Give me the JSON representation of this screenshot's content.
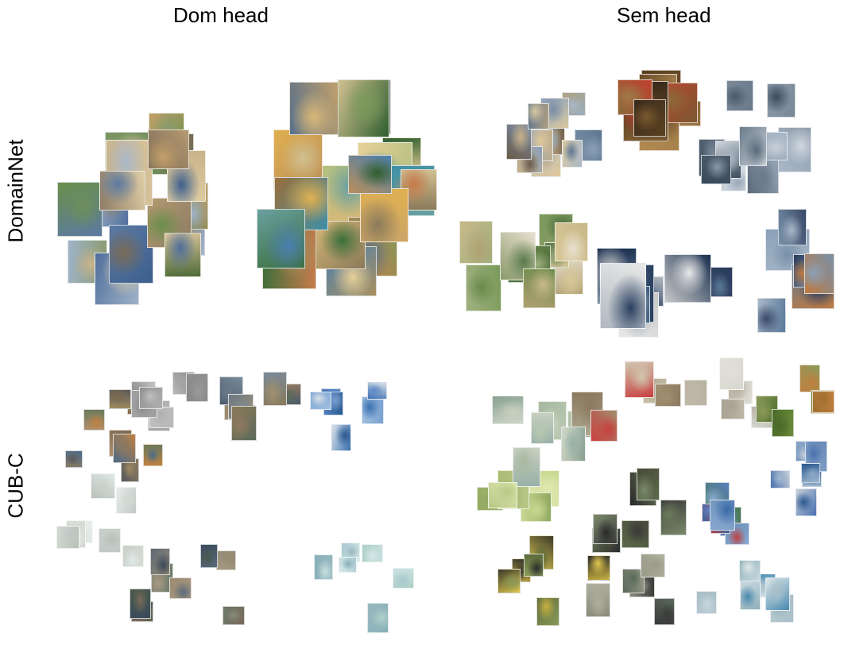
{
  "figure": {
    "column_titles": [
      "Dom head",
      "Sem head"
    ],
    "row_titles": [
      "DomainNet",
      "CUB-C"
    ]
  },
  "panels": [
    {
      "name": "domainnet-dom-head",
      "clusters": [
        {
          "theme": "mixed-photo",
          "colors": [
            "#8a9b6e",
            "#5b7aa3",
            "#c9b28a",
            "#6e8f5a",
            "#3d5f8c",
            "#d7c39a",
            "#7a6a55",
            "#a9b8c9",
            "#4f6b3a",
            "#b59a72",
            "#506e9c",
            "#c4a06a",
            "#8d7b64",
            "#9fb3c8",
            "#6b8f4a",
            "#e0cfa6"
          ]
        },
        {
          "theme": "painting",
          "colors": [
            "#c9a46a",
            "#3e8fa8",
            "#d8b878",
            "#e0b050",
            "#6aa0a0",
            "#8a7a5a",
            "#b98e5a",
            "#3a6e3a",
            "#d0c090",
            "#4a7fb0",
            "#c87a4a",
            "#2f5e2f",
            "#a89060",
            "#7a9a5a",
            "#e8d098",
            "#58708a",
            "#9a6e3a",
            "#b0c080"
          ]
        }
      ]
    },
    {
      "name": "domainnet-sem-head",
      "clusters": [
        {
          "theme": "eiffel",
          "colors": [
            "#7a8fa8",
            "#a9b8c9",
            "#c8b088",
            "#5e7690",
            "#e0c89a",
            "#8aa0b8",
            "#b0a080",
            "#6a5a48",
            "#d8c8a0",
            "#9aaec0"
          ]
        },
        {
          "theme": "mona-lisa",
          "colors": [
            "#6a4a2a",
            "#8a6a3a",
            "#3a2a1a",
            "#b08a50",
            "#c04030",
            "#5a4020",
            "#a07a48",
            "#7a5a30"
          ]
        },
        {
          "theme": "ships",
          "colors": [
            "#6a7a8a",
            "#aab8c8",
            "#4a5a6a",
            "#c8d0d8",
            "#8a98a8",
            "#5a6a7a",
            "#d0d8e0",
            "#7a8898",
            "#9aa8b8",
            "#3a4a5a"
          ]
        },
        {
          "theme": "great-wall",
          "colors": [
            "#6a8a4a",
            "#8a9a6a",
            "#c8b888",
            "#4a6a3a",
            "#e8e0d0",
            "#a0b080",
            "#5a7a4a",
            "#b0a070",
            "#7a9a5a",
            "#d8c898"
          ]
        },
        {
          "theme": "boats-vehicles",
          "colors": [
            "#3a5a7a",
            "#e8e8e8",
            "#8a98a8",
            "#2a4060",
            "#c8c8c8",
            "#5a7898",
            "#b0b8c0",
            "#1a3050"
          ]
        },
        {
          "theme": "aircraft",
          "colors": [
            "#5a7a9a",
            "#8aa0b8",
            "#3a4a6a",
            "#c07a40",
            "#a8b8c8",
            "#2a3a5a",
            "#7890a8"
          ]
        }
      ]
    },
    {
      "name": "cubc-dom-head",
      "clusters": [
        {
          "theme": "gray-noise",
          "colors": [
            "#9a9a9a",
            "#b0b0b0",
            "#888888",
            "#c0c0c0",
            "#a4a4a4",
            "#909090",
            "#b8b8b8"
          ]
        },
        {
          "theme": "noisy-birds",
          "colors": [
            "#6a7a8a",
            "#8a7a5a",
            "#4a5a6a",
            "#a09070",
            "#5a6a5a",
            "#7a8a9a",
            "#907860"
          ]
        },
        {
          "theme": "blue-birds",
          "colors": [
            "#5a88c8",
            "#3a70b0",
            "#a0c0e0",
            "#2a5890",
            "#d8e0e8",
            "#7aa0d0"
          ]
        },
        {
          "theme": "mixed-noisy",
          "colors": [
            "#8a7a60",
            "#6a7a5a",
            "#a08a60",
            "#4a6a8a",
            "#b09070",
            "#5a5a5a",
            "#c08040",
            "#7a6a50"
          ]
        },
        {
          "theme": "faded-light",
          "colors": [
            "#e0e8e8",
            "#d0d8d0",
            "#c8d0c8",
            "#e8ece8",
            "#b8c0b8",
            "#d8dcd8",
            "#c0c8c8"
          ]
        },
        {
          "theme": "textured",
          "colors": [
            "#7a6a5a",
            "#5a6a7a",
            "#8a8a7a",
            "#4a5a4a",
            "#9a8a70",
            "#6a7a6a",
            "#3a4a5a",
            "#a89880"
          ]
        },
        {
          "theme": "pastel-teal",
          "colors": [
            "#a8c8d0",
            "#c8e0e0",
            "#88b0b8",
            "#d8e8e8",
            "#b0d0c8",
            "#98b8c0"
          ]
        }
      ]
    },
    {
      "name": "cubc-sem-head",
      "clusters": [
        {
          "theme": "warbler-pale",
          "colors": [
            "#a8b8a0",
            "#c8d0c0",
            "#88a090",
            "#b8c8b0",
            "#98b0a8",
            "#d0d8c8"
          ]
        },
        {
          "theme": "cardinal-mixed",
          "colors": [
            "#b0a890",
            "#c84040",
            "#8a7a60",
            "#d0c8b0",
            "#a09070"
          ]
        },
        {
          "theme": "sparrow-sketch",
          "colors": [
            "#d8d8d0",
            "#c0b8a8",
            "#e0e0d8",
            "#a8a090",
            "#b8b0a0"
          ]
        },
        {
          "theme": "orange-birds",
          "colors": [
            "#6a8a3a",
            "#c08040",
            "#4a6a2a",
            "#a07030",
            "#8a9a5a"
          ]
        },
        {
          "theme": "yellow-warbler",
          "colors": [
            "#c8d890",
            "#a8b870",
            "#e0e8b0",
            "#90a860",
            "#b8c888"
          ]
        },
        {
          "theme": "grackle",
          "colors": [
            "#3a3a3a",
            "#5a6a4a",
            "#2a2a2a",
            "#7a8a6a",
            "#4a4a3a",
            "#6a7a5a"
          ]
        },
        {
          "theme": "bluebird",
          "colors": [
            "#5a80c0",
            "#3a6aa8",
            "#88a8d0",
            "#4a7a4a",
            "#c04040",
            "#6a90b8"
          ]
        },
        {
          "theme": "blue-jay",
          "colors": [
            "#4a70b0",
            "#8aa8c8",
            "#2a5890",
            "#c8d0d8",
            "#6a8ab8",
            "#a0b8d0"
          ]
        },
        {
          "theme": "blackbird-yellow",
          "colors": [
            "#3a3a2a",
            "#c8b040",
            "#5a6a3a",
            "#e0c850",
            "#2a2a2a",
            "#8a9a5a"
          ]
        },
        {
          "theme": "catbird",
          "colors": [
            "#8a8a7a",
            "#5a6a5a",
            "#b0b0a0",
            "#3a3a3a",
            "#9a9a88"
          ]
        },
        {
          "theme": "heron-pale",
          "colors": [
            "#c8d8e0",
            "#a8c0c8",
            "#e0e8e8",
            "#90b0b8",
            "#b8c8d0",
            "#4a8ab0"
          ]
        }
      ]
    }
  ]
}
